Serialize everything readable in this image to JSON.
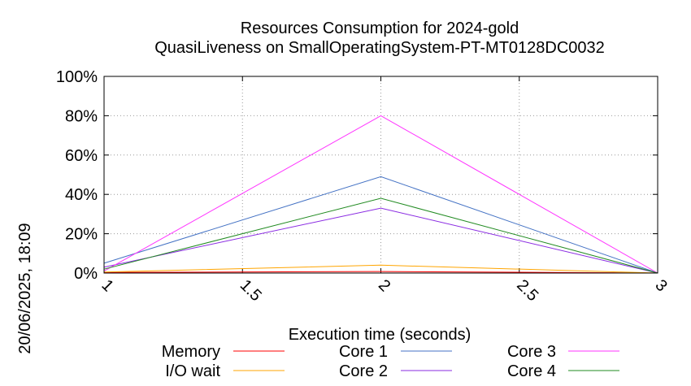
{
  "chart_data": {
    "type": "line",
    "title": "Resources Consumption for 2024-gold",
    "subtitle": "QuasiLiveness on SmallOperatingSystem-PT-MT0128DC0032",
    "xlabel": "Execution time (seconds)",
    "ylabel": "",
    "xlim": [
      1,
      3
    ],
    "ylim": [
      0,
      100
    ],
    "x_ticks": [
      "1",
      "1.5",
      "2",
      "2.5",
      "3"
    ],
    "x_tick_values": [
      1,
      1.5,
      2,
      2.5,
      3
    ],
    "y_ticks": [
      "0%",
      "20%",
      "40%",
      "60%",
      "80%",
      "100%"
    ],
    "y_tick_values": [
      0,
      20,
      40,
      60,
      80,
      100
    ],
    "grid": true,
    "legend_position": "bottom",
    "timestamp": "20/06/2025, 18:09",
    "series": [
      {
        "name": "Memory",
        "color": "#ff0000",
        "x": [
          1,
          2,
          3
        ],
        "y": [
          0.3,
          0.8,
          0
        ]
      },
      {
        "name": "I/O wait",
        "color": "#ffa500",
        "x": [
          1,
          2,
          3
        ],
        "y": [
          0.5,
          4,
          0
        ]
      },
      {
        "name": "Core 1",
        "color": "#4472c4",
        "x": [
          1,
          2,
          3
        ],
        "y": [
          5,
          49,
          0
        ]
      },
      {
        "name": "Core 2",
        "color": "#8a2be2",
        "x": [
          1,
          2,
          3
        ],
        "y": [
          3,
          33,
          0
        ]
      },
      {
        "name": "Core 3",
        "color": "#ff33ff",
        "x": [
          1,
          2,
          3
        ],
        "y": [
          1,
          80,
          0
        ]
      },
      {
        "name": "Core 4",
        "color": "#228b22",
        "x": [
          1,
          2,
          3
        ],
        "y": [
          2,
          38,
          0
        ]
      }
    ]
  }
}
